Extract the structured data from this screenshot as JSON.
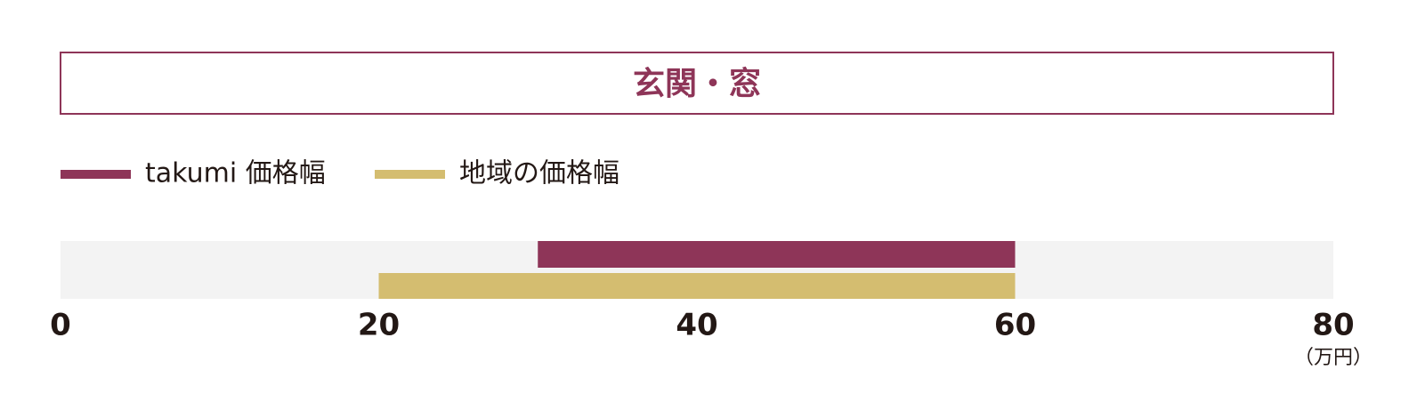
{
  "chart_data": {
    "type": "bar",
    "title": "玄関・窓",
    "unit": "（万円）",
    "series": [
      {
        "name": "takumi 価格幅",
        "color": "#8e3558",
        "start": 30,
        "end": 60
      },
      {
        "name": "地域の価格幅",
        "color": "#d4bd70",
        "start": 20,
        "end": 60
      }
    ],
    "xlim": [
      0,
      80
    ],
    "xticks": [
      0,
      20,
      40,
      60,
      80
    ]
  }
}
